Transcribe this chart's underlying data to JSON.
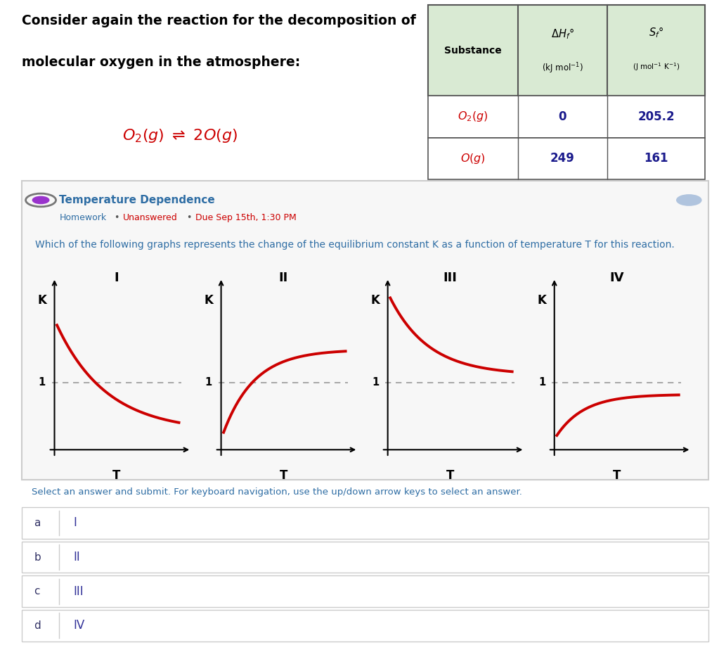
{
  "title_line1": "Consider again the reaction for the decomposition of",
  "title_line2": "molecular oxygen in the atmosphere:",
  "table_header_bg": "#d9ead3",
  "table_border": "#555555",
  "curve_color": "#cc0000",
  "dashed_color": "#999999",
  "title_color": "#000000",
  "question_color": "#2e6da4",
  "answer_label_color": "#555555",
  "answer_value_color": "#333399",
  "bottom_bar_color": "#1a73e8",
  "bg_color": "#ffffff",
  "box_bg": "#f8f8f8",
  "graph_labels": [
    "I",
    "II",
    "III",
    "IV"
  ],
  "answer_options": [
    "a",
    "b",
    "c",
    "d"
  ],
  "answer_values": [
    "I",
    "II",
    "III",
    "IV"
  ]
}
